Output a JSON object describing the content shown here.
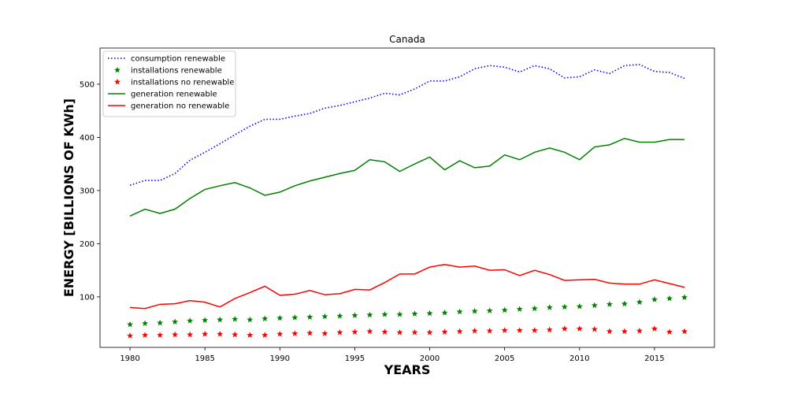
{
  "chart_data": {
    "type": "line",
    "title": "Canada",
    "xlabel": "YEARS",
    "ylabel": "ENERGY [BILLIONS OF KWh]",
    "xlim": [
      1978,
      2019
    ],
    "ylim": [
      5,
      568
    ],
    "xticks": [
      1980,
      1985,
      1990,
      1995,
      2000,
      2005,
      2010,
      2015
    ],
    "yticks": [
      100,
      200,
      300,
      400,
      500
    ],
    "grid": false,
    "legend_position": "top-left",
    "x": [
      1980,
      1981,
      1982,
      1983,
      1984,
      1985,
      1986,
      1987,
      1988,
      1989,
      1990,
      1991,
      1992,
      1993,
      1994,
      1995,
      1996,
      1997,
      1998,
      1999,
      2000,
      2001,
      2002,
      2003,
      2004,
      2005,
      2006,
      2007,
      2008,
      2009,
      2010,
      2011,
      2012,
      2013,
      2014,
      2015,
      2016,
      2017
    ],
    "series": [
      {
        "name": "consumption renewable",
        "style": "dotted-line",
        "color": "#0000ff",
        "values": [
          310,
          319,
          319,
          332,
          357,
          372,
          388,
          405,
          421,
          434,
          434,
          440,
          445,
          455,
          460,
          467,
          474,
          483,
          480,
          491,
          506,
          506,
          514,
          529,
          535,
          532,
          523,
          535,
          529,
          512,
          514,
          527,
          520,
          535,
          537,
          524,
          522,
          511
        ]
      },
      {
        "name": "installations renewable",
        "style": "star-marker",
        "color": "#008000",
        "values": [
          48,
          50,
          51,
          53,
          55,
          56,
          57,
          58,
          57,
          59,
          60,
          61,
          62,
          63,
          64,
          65,
          66,
          67,
          67,
          68,
          69,
          70,
          72,
          73,
          74,
          75,
          77,
          78,
          80,
          81,
          82,
          84,
          86,
          87,
          90,
          95,
          97,
          99
        ]
      },
      {
        "name": "installations no renewable",
        "style": "star-marker",
        "color": "#ff0000",
        "values": [
          27,
          28,
          28,
          29,
          29,
          30,
          30,
          29,
          28,
          28,
          30,
          31,
          32,
          31,
          33,
          34,
          35,
          34,
          33,
          33,
          33,
          34,
          35,
          36,
          36,
          37,
          37,
          37,
          38,
          40,
          40,
          39,
          35,
          35,
          36,
          40,
          34,
          35
        ]
      },
      {
        "name": "generation renewable",
        "style": "solid-line",
        "color": "#008000",
        "values": [
          252,
          265,
          257,
          265,
          285,
          302,
          309,
          315,
          305,
          291,
          297,
          309,
          318,
          325,
          332,
          338,
          358,
          354,
          336,
          350,
          363,
          339,
          356,
          343,
          346,
          367,
          358,
          372,
          380,
          372,
          358,
          382,
          386,
          398,
          391,
          391,
          396,
          396
        ]
      },
      {
        "name": "generation no renewable",
        "style": "solid-line",
        "color": "#ff0000",
        "values": [
          80,
          78,
          86,
          87,
          93,
          90,
          81,
          97,
          108,
          120,
          103,
          105,
          112,
          104,
          106,
          114,
          113,
          127,
          143,
          143,
          156,
          161,
          156,
          158,
          150,
          151,
          140,
          150,
          142,
          131,
          132,
          133,
          126,
          124,
          124,
          132,
          125,
          118
        ]
      }
    ]
  }
}
